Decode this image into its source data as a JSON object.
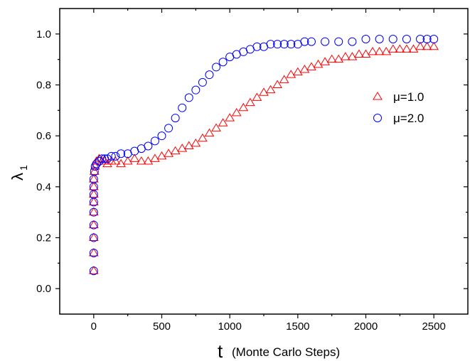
{
  "chart_data": {
    "type": "scatter",
    "title": "",
    "xlabel_main": "t",
    "xlabel_paren": "(Monte Carlo Steps)",
    "ylabel_main": "λ",
    "ylabel_sub": "1",
    "xlim": [
      -250,
      2750
    ],
    "ylim": [
      -0.1,
      1.1
    ],
    "xticks": [
      0,
      500,
      1000,
      1500,
      2000,
      2500
    ],
    "yticks": [
      0.0,
      0.2,
      0.4,
      0.6,
      0.8,
      1.0
    ],
    "xtick_labels": [
      "0",
      "500",
      "1000",
      "1500",
      "2000",
      "2500"
    ],
    "ytick_labels": [
      "0.0",
      "0.2",
      "0.4",
      "0.6",
      "0.8",
      "1.0"
    ],
    "grid": false,
    "legend_position": "right",
    "series": [
      {
        "name": "μ=1.0",
        "marker": "triangle",
        "color": "#ff0000",
        "points": [
          [
            0,
            0.07
          ],
          [
            0,
            0.14
          ],
          [
            0,
            0.2
          ],
          [
            0,
            0.25
          ],
          [
            0,
            0.3
          ],
          [
            0,
            0.34
          ],
          [
            0,
            0.37
          ],
          [
            0,
            0.4
          ],
          [
            0,
            0.43
          ],
          [
            5,
            0.46
          ],
          [
            10,
            0.48
          ],
          [
            20,
            0.5
          ],
          [
            40,
            0.51
          ],
          [
            60,
            0.5
          ],
          [
            80,
            0.5
          ],
          [
            100,
            0.49
          ],
          [
            130,
            0.5
          ],
          [
            160,
            0.5
          ],
          [
            200,
            0.49
          ],
          [
            250,
            0.5
          ],
          [
            300,
            0.51
          ],
          [
            350,
            0.5
          ],
          [
            400,
            0.5
          ],
          [
            450,
            0.51
          ],
          [
            500,
            0.52
          ],
          [
            550,
            0.53
          ],
          [
            600,
            0.54
          ],
          [
            650,
            0.55
          ],
          [
            700,
            0.56
          ],
          [
            750,
            0.57
          ],
          [
            800,
            0.59
          ],
          [
            850,
            0.61
          ],
          [
            900,
            0.63
          ],
          [
            950,
            0.65
          ],
          [
            1000,
            0.67
          ],
          [
            1050,
            0.69
          ],
          [
            1100,
            0.71
          ],
          [
            1150,
            0.73
          ],
          [
            1200,
            0.75
          ],
          [
            1250,
            0.77
          ],
          [
            1300,
            0.78
          ],
          [
            1350,
            0.8
          ],
          [
            1400,
            0.82
          ],
          [
            1450,
            0.84
          ],
          [
            1500,
            0.85
          ],
          [
            1550,
            0.86
          ],
          [
            1600,
            0.87
          ],
          [
            1650,
            0.88
          ],
          [
            1700,
            0.89
          ],
          [
            1750,
            0.9
          ],
          [
            1800,
            0.9
          ],
          [
            1850,
            0.91
          ],
          [
            1900,
            0.91
          ],
          [
            1950,
            0.92
          ],
          [
            2000,
            0.92
          ],
          [
            2050,
            0.93
          ],
          [
            2100,
            0.93
          ],
          [
            2150,
            0.93
          ],
          [
            2200,
            0.94
          ],
          [
            2250,
            0.94
          ],
          [
            2300,
            0.94
          ],
          [
            2350,
            0.94
          ],
          [
            2400,
            0.95
          ],
          [
            2450,
            0.95
          ],
          [
            2500,
            0.95
          ]
        ]
      },
      {
        "name": "μ=2.0",
        "marker": "circle",
        "color": "#0000ff",
        "points": [
          [
            0,
            0.07
          ],
          [
            0,
            0.14
          ],
          [
            0,
            0.2
          ],
          [
            0,
            0.25
          ],
          [
            0,
            0.3
          ],
          [
            0,
            0.34
          ],
          [
            0,
            0.37
          ],
          [
            0,
            0.4
          ],
          [
            0,
            0.43
          ],
          [
            5,
            0.46
          ],
          [
            10,
            0.48
          ],
          [
            20,
            0.49
          ],
          [
            40,
            0.5
          ],
          [
            60,
            0.51
          ],
          [
            80,
            0.51
          ],
          [
            100,
            0.51
          ],
          [
            130,
            0.52
          ],
          [
            160,
            0.52
          ],
          [
            200,
            0.53
          ],
          [
            250,
            0.53
          ],
          [
            300,
            0.54
          ],
          [
            350,
            0.55
          ],
          [
            400,
            0.56
          ],
          [
            450,
            0.58
          ],
          [
            500,
            0.6
          ],
          [
            550,
            0.63
          ],
          [
            600,
            0.67
          ],
          [
            650,
            0.71
          ],
          [
            700,
            0.75
          ],
          [
            750,
            0.78
          ],
          [
            800,
            0.81
          ],
          [
            850,
            0.84
          ],
          [
            900,
            0.87
          ],
          [
            950,
            0.89
          ],
          [
            1000,
            0.91
          ],
          [
            1050,
            0.92
          ],
          [
            1100,
            0.93
          ],
          [
            1150,
            0.94
          ],
          [
            1200,
            0.95
          ],
          [
            1250,
            0.95
          ],
          [
            1300,
            0.96
          ],
          [
            1350,
            0.96
          ],
          [
            1400,
            0.96
          ],
          [
            1450,
            0.96
          ],
          [
            1500,
            0.96
          ],
          [
            1550,
            0.97
          ],
          [
            1600,
            0.97
          ],
          [
            1700,
            0.97
          ],
          [
            1800,
            0.97
          ],
          [
            1900,
            0.97
          ],
          [
            2000,
            0.98
          ],
          [
            2100,
            0.98
          ],
          [
            2200,
            0.98
          ],
          [
            2300,
            0.98
          ],
          [
            2400,
            0.98
          ],
          [
            2450,
            0.98
          ],
          [
            2500,
            0.98
          ]
        ]
      }
    ]
  }
}
